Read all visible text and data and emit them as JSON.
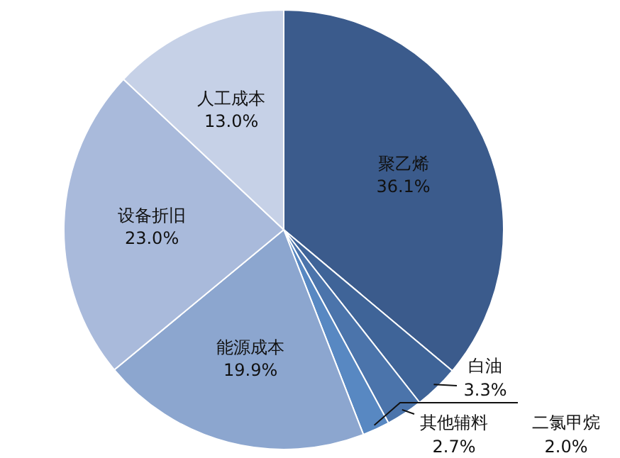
{
  "chart_data": {
    "type": "pie",
    "categories": [
      "聚乙烯",
      "白油",
      "其他辅料",
      "二氯甲烷",
      "能源成本",
      "设备折旧",
      "人工成本"
    ],
    "values": [
      36.1,
      3.3,
      2.7,
      2.0,
      19.9,
      23.0,
      13.0
    ],
    "colors": [
      "#3b5b8c",
      "#3f6498",
      "#4b74ab",
      "#5888c2",
      "#8ca6cf",
      "#a9badb",
      "#c6d1e7"
    ],
    "value_labels": [
      "36.1%",
      "3.3%",
      "2.7%",
      "2.0%",
      "19.9%",
      "23.0%",
      "13.0%"
    ]
  }
}
